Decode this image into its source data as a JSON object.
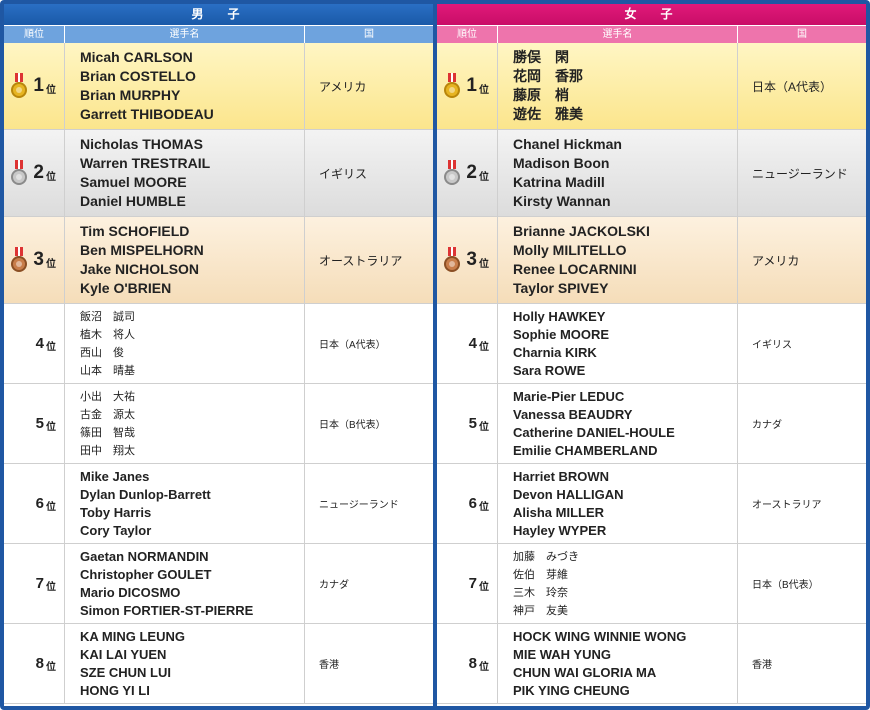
{
  "men": {
    "title": "男　子",
    "headers": {
      "rank": "順位",
      "name": "選手名",
      "country": "国"
    },
    "rows": [
      {
        "rank": "1",
        "suffix": "位",
        "medal": "gold-medal",
        "names": [
          "Micah CARLSON",
          "Brian COSTELLO",
          "Brian MURPHY",
          "Garrett THIBODEAU"
        ],
        "country": "アメリカ"
      },
      {
        "rank": "2",
        "suffix": "位",
        "medal": "silver-medal",
        "names": [
          "Nicholas THOMAS",
          "Warren TRESTRAIL",
          "Samuel MOORE",
          "Daniel HUMBLE"
        ],
        "country": "イギリス"
      },
      {
        "rank": "3",
        "suffix": "位",
        "medal": "bronze-medal",
        "names": [
          "Tim SCHOFIELD",
          "Ben MISPELHORN",
          "Jake NICHOLSON",
          "Kyle O'BRIEN"
        ],
        "country": "オーストラリア"
      },
      {
        "rank": "4",
        "suffix": "位",
        "names": [
          "飯沼　誠司",
          "植木　将人",
          "西山　俊",
          "山本　晴基"
        ],
        "country": "日本（A代表）"
      },
      {
        "rank": "5",
        "suffix": "位",
        "names": [
          "小出　大祐",
          "古金　源太",
          "篠田　智哉",
          "田中　翔太"
        ],
        "country": "日本（B代表）"
      },
      {
        "rank": "6",
        "suffix": "位",
        "names": [
          "Mike Janes",
          "Dylan Dunlop-Barrett",
          "Toby Harris",
          "Cory Taylor"
        ],
        "country": "ニュージーランド"
      },
      {
        "rank": "7",
        "suffix": "位",
        "names": [
          "Gaetan NORMANDIN",
          "Christopher GOULET",
          "Mario DICOSMO",
          "Simon FORTIER-ST-PIERRE"
        ],
        "country": "カナダ"
      },
      {
        "rank": "8",
        "suffix": "位",
        "names": [
          "KA MING LEUNG",
          "KAI LAI YUEN",
          "SZE CHUN LUI",
          "HONG YI LI"
        ],
        "country": "香港"
      }
    ]
  },
  "women": {
    "title": "女　子",
    "headers": {
      "rank": "順位",
      "name": "選手名",
      "country": "国"
    },
    "rows": [
      {
        "rank": "1",
        "suffix": "位",
        "medal": "gold-medal",
        "names": [
          "勝俣　閑",
          "花岡　香那",
          "藤原　梢",
          "遊佐　雅美"
        ],
        "country": "日本（A代表）"
      },
      {
        "rank": "2",
        "suffix": "位",
        "medal": "silver-medal",
        "names": [
          "Chanel Hickman",
          "Madison Boon",
          "Katrina Madill",
          "Kirsty Wannan"
        ],
        "country": "ニュージーランド"
      },
      {
        "rank": "3",
        "suffix": "位",
        "medal": "bronze-medal",
        "names": [
          "Brianne JACKOLSKI",
          "Molly MILITELLO",
          "Renee LOCARNINI",
          "Taylor SPIVEY"
        ],
        "country": "アメリカ"
      },
      {
        "rank": "4",
        "suffix": "位",
        "names": [
          "Holly HAWKEY",
          "Sophie MOORE",
          "Charnia KIRK",
          "Sara ROWE"
        ],
        "country": "イギリス"
      },
      {
        "rank": "5",
        "suffix": "位",
        "names": [
          "Marie-Pier LEDUC",
          "Vanessa BEAUDRY",
          "Catherine DANIEL-HOULE",
          "Emilie CHAMBERLAND"
        ],
        "country": "カナダ"
      },
      {
        "rank": "6",
        "suffix": "位",
        "names": [
          "Harriet BROWN",
          "Devon HALLIGAN",
          "Alisha MILLER",
          "Hayley WYPER"
        ],
        "country": "オーストラリア"
      },
      {
        "rank": "7",
        "suffix": "位",
        "names": [
          "加藤　みづき",
          "佐伯　芽維",
          "三木　玲奈",
          "神戸　友美"
        ],
        "country": "日本（B代表）"
      },
      {
        "rank": "8",
        "suffix": "位",
        "names": [
          "HOCK WING WINNIE WONG",
          "MIE WAH YUNG",
          "CHUN WAI GLORIA MA",
          "PIK YING CHEUNG"
        ],
        "country": "香港"
      }
    ]
  },
  "colors": {
    "frame": "#1f57a3",
    "men_header": "#1a5aa8",
    "women_header": "#c90d67",
    "gold_row": "#fbe58c",
    "silver_row": "#dcdcdc",
    "bronze_row": "#f5ddb9"
  }
}
